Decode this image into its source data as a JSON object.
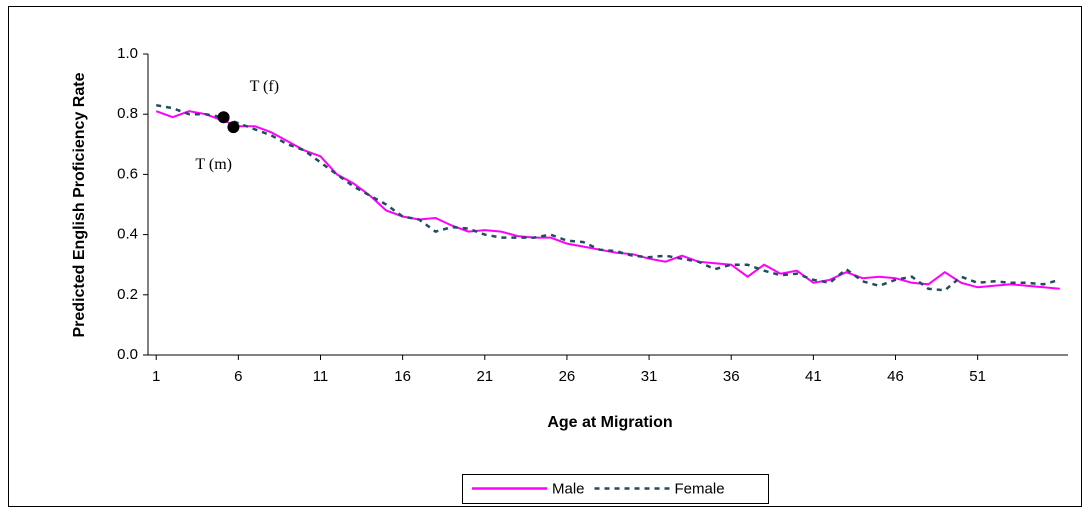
{
  "chart_data": {
    "type": "line",
    "x_label": "Age at Migration",
    "y_label": "Predicted English Proficiency Rate",
    "x": [
      1,
      2,
      3,
      4,
      5,
      6,
      7,
      8,
      9,
      10,
      11,
      12,
      13,
      14,
      15,
      16,
      17,
      18,
      19,
      20,
      21,
      22,
      23,
      24,
      25,
      26,
      27,
      28,
      29,
      30,
      31,
      32,
      33,
      34,
      35,
      36,
      37,
      38,
      39,
      40,
      41,
      42,
      43,
      44,
      45,
      46,
      47,
      48,
      49,
      50,
      51,
      52,
      53,
      54,
      55,
      56
    ],
    "xlim": [
      0.5,
      56.5
    ],
    "xticks": [
      1,
      6,
      11,
      16,
      21,
      26,
      31,
      36,
      41,
      46,
      51
    ],
    "ylim": [
      0,
      1
    ],
    "yticks": [
      {
        "value": 0,
        "label": "0.0"
      },
      0.2,
      0.4,
      0.6,
      0.8,
      {
        "value": 1,
        "label": "1.0"
      }
    ],
    "series": [
      {
        "name": "Male",
        "color": "#ff00ff",
        "dash": "solid",
        "values": [
          0.81,
          0.79,
          0.81,
          0.8,
          0.78,
          0.76,
          0.76,
          0.74,
          0.71,
          0.68,
          0.66,
          0.6,
          0.57,
          0.53,
          0.48,
          0.46,
          0.45,
          0.455,
          0.43,
          0.41,
          0.415,
          0.41,
          0.395,
          0.39,
          0.39,
          0.37,
          0.36,
          0.35,
          0.34,
          0.335,
          0.32,
          0.31,
          0.33,
          0.31,
          0.305,
          0.3,
          0.26,
          0.3,
          0.27,
          0.28,
          0.24,
          0.25,
          0.275,
          0.255,
          0.26,
          0.255,
          0.24,
          0.235,
          0.275,
          0.24,
          0.225,
          0.23,
          0.235,
          0.23,
          0.225,
          0.22
        ]
      },
      {
        "name": "Female",
        "color": "#1f4e5f",
        "dash": "dashed",
        "values": [
          0.83,
          0.82,
          0.8,
          0.8,
          0.79,
          0.77,
          0.75,
          0.73,
          0.7,
          0.68,
          0.64,
          0.6,
          0.56,
          0.53,
          0.5,
          0.46,
          0.45,
          0.41,
          0.425,
          0.42,
          0.4,
          0.39,
          0.39,
          0.39,
          0.4,
          0.38,
          0.375,
          0.35,
          0.345,
          0.33,
          0.325,
          0.33,
          0.32,
          0.31,
          0.285,
          0.3,
          0.3,
          0.28,
          0.265,
          0.27,
          0.25,
          0.24,
          0.285,
          0.245,
          0.23,
          0.25,
          0.26,
          0.22,
          0.215,
          0.26,
          0.24,
          0.245,
          0.24,
          0.24,
          0.235,
          0.25
        ]
      }
    ],
    "points": [
      {
        "label": "T (f)",
        "x": 5.1,
        "y": 0.79
      },
      {
        "label": "T (m)",
        "x": 5.7,
        "y": 0.757
      }
    ],
    "legend": "bottom"
  }
}
